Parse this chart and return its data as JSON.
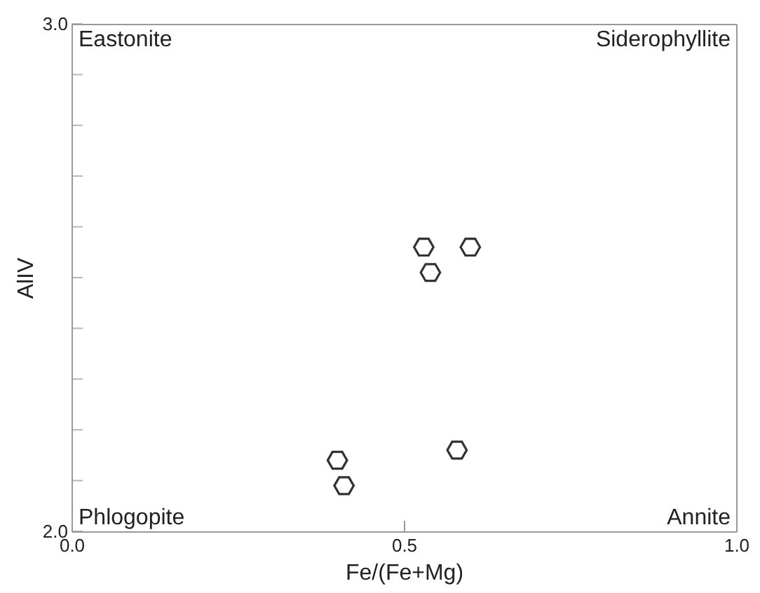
{
  "chart_data": {
    "type": "scatter",
    "xlabel": "Fe/(Fe+Mg)",
    "ylabel": "AlIV",
    "xlim": [
      0,
      1
    ],
    "ylim": [
      2,
      3
    ],
    "xticks": [
      {
        "value": 0,
        "label": "0.0"
      },
      {
        "value": 0.5,
        "label": "0.5"
      },
      {
        "value": 1,
        "label": "1.0"
      }
    ],
    "yticks": [
      {
        "value": 2,
        "label": "2.0"
      },
      {
        "value": 2.1,
        "label": null
      },
      {
        "value": 2.2,
        "label": null
      },
      {
        "value": 2.3,
        "label": null
      },
      {
        "value": 2.4,
        "label": null
      },
      {
        "value": 2.5,
        "label": null
      },
      {
        "value": 2.6,
        "label": null
      },
      {
        "value": 2.7,
        "label": null
      },
      {
        "value": 2.8,
        "label": null
      },
      {
        "value": 2.9,
        "label": null
      },
      {
        "value": 3,
        "label": "3.0"
      }
    ],
    "grid": false,
    "series": [
      {
        "color": "#333333",
        "x": [
          0.53,
          0.6,
          0.54,
          0.58,
          0.4,
          0.41
        ],
        "values": [
          2.56,
          2.56,
          2.51,
          2.16,
          2.14,
          2.09
        ]
      }
    ],
    "annotations": [
      "Eastonite",
      "Siderophyllite",
      "Phlogopite",
      "Annite"
    ]
  }
}
